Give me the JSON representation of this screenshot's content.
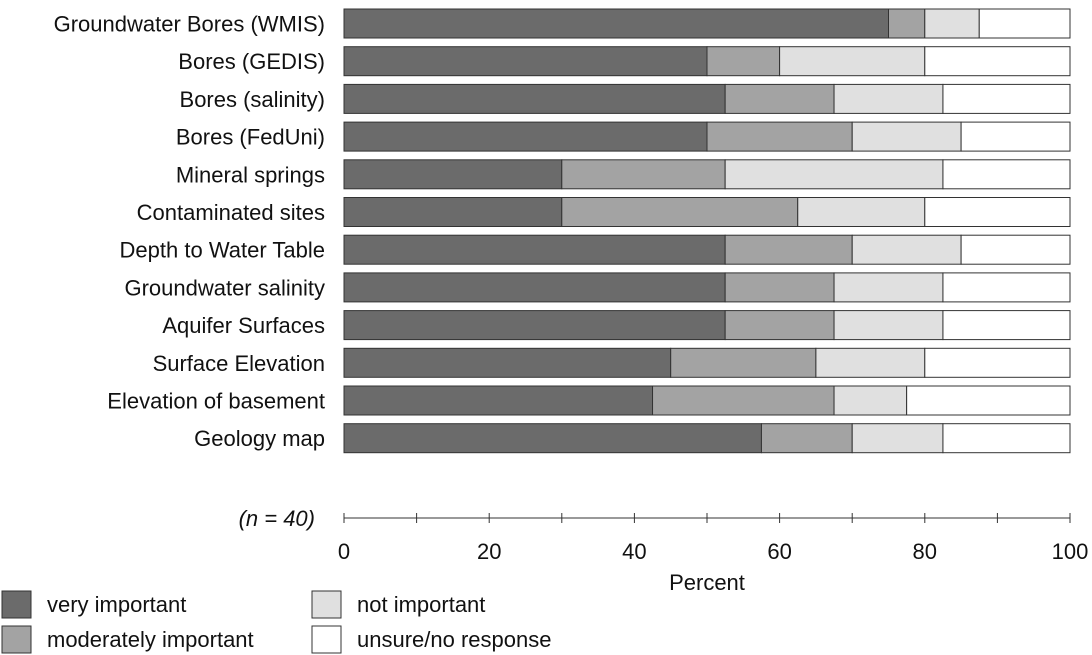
{
  "chart_data": {
    "type": "bar",
    "orientation": "horizontal",
    "stacked": true,
    "categories": [
      "Groundwater Bores (WMIS)",
      "Bores (GEDIS)",
      "Bores (salinity)",
      "Bores (FedUni)",
      "Mineral springs",
      "Contaminated sites",
      "Depth to Water Table",
      "Groundwater salinity",
      "Aquifer Surfaces",
      "Surface Elevation",
      "Elevation of basement",
      "Geology map"
    ],
    "series": [
      {
        "name": "very important",
        "color": "#6b6b6b",
        "values": [
          75,
          50,
          52.5,
          50,
          30,
          30,
          52.5,
          52.5,
          52.5,
          45,
          42.5,
          57.5
        ]
      },
      {
        "name": "moderately important",
        "color": "#a3a3a3",
        "values": [
          5,
          10,
          15,
          20,
          22.5,
          32.5,
          17.5,
          15,
          15,
          20,
          25,
          12.5
        ]
      },
      {
        "name": "not important",
        "color": "#e0e0e0",
        "values": [
          7.5,
          20,
          15,
          15,
          30,
          17.5,
          15,
          15,
          15,
          15,
          10,
          12.5
        ]
      },
      {
        "name": "unsure/no response",
        "color": "#ffffff",
        "values": [
          12.5,
          20,
          17.5,
          15,
          17.5,
          20,
          15,
          17.5,
          17.5,
          20,
          22.5,
          17.5
        ]
      }
    ],
    "xlabel": "Percent",
    "xlim": [
      0,
      100
    ],
    "xticks": [
      "0",
      "20",
      "40",
      "60",
      "80",
      "100"
    ],
    "note": "(n = 40)",
    "legend": "bottom-left"
  }
}
